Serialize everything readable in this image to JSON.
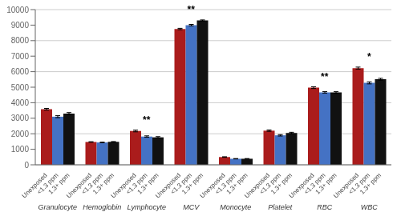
{
  "chart_data": {
    "type": "bar",
    "categories": [
      "Granulocyte",
      "Hemoglobin",
      "Lymphocyte",
      "MCV",
      "Monocyte",
      "Platelet",
      "RBC",
      "WBC"
    ],
    "series": [
      {
        "name": "Unexposed",
        "color": "#aa1c1c",
        "values": [
          3580,
          1470,
          2180,
          8750,
          500,
          2200,
          4970,
          6230
        ],
        "errors": [
          55,
          18,
          55,
          45,
          18,
          45,
          55,
          65
        ]
      },
      {
        "name": "<1.3 ppm",
        "color": "#4472c4",
        "values": [
          3100,
          1440,
          1820,
          9000,
          390,
          1900,
          4670,
          5280
        ],
        "errors": [
          65,
          18,
          45,
          45,
          12,
          45,
          50,
          65
        ]
      },
      {
        "name": "1.3+ ppm",
        "color": "#111111",
        "values": [
          3300,
          1480,
          1770,
          9300,
          390,
          2050,
          4660,
          5510
        ],
        "errors": [
          65,
          18,
          45,
          35,
          12,
          45,
          50,
          60
        ]
      }
    ],
    "annotations": [
      {
        "category": "Lymphocyte",
        "text": "**"
      },
      {
        "category": "MCV",
        "text": "**"
      },
      {
        "category": "RBC",
        "text": "**"
      },
      {
        "category": "WBC",
        "text": "*"
      }
    ],
    "ylim": [
      0,
      10000
    ],
    "yticks": [
      0,
      1000,
      2000,
      3000,
      4000,
      5000,
      6000,
      7000,
      8000,
      9000,
      10000
    ],
    "grid": true
  }
}
